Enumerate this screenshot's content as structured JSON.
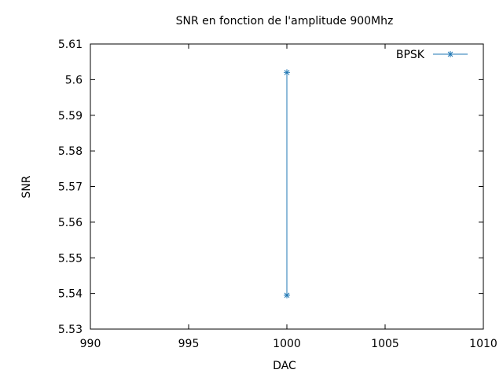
{
  "chart_data": {
    "type": "line",
    "title": "SNR en fonction de l'amplitude 900Mhz",
    "xlabel": "DAC",
    "ylabel": "SNR",
    "xlim": [
      990,
      1010
    ],
    "ylim": [
      5.53,
      5.61
    ],
    "xticks": [
      990,
      995,
      1000,
      1005,
      1010
    ],
    "xtick_labels": [
      "990",
      "995",
      "1000",
      "1005",
      "1010"
    ],
    "yticks": [
      5.53,
      5.54,
      5.55,
      5.56,
      5.57,
      5.58,
      5.59,
      5.6,
      5.61
    ],
    "ytick_labels": [
      "5.53",
      "5.54",
      "5.55",
      "5.56",
      "5.57",
      "5.58",
      "5.59",
      "5.6",
      "5.61"
    ],
    "grid": false,
    "legend_position": "top-right",
    "series": [
      {
        "name": "BPSK",
        "color": "#1f77b4",
        "marker": "asterisk",
        "points": [
          {
            "x": 1000,
            "y": 5.602
          },
          {
            "x": 1000,
            "y": 5.5395
          }
        ]
      }
    ]
  }
}
